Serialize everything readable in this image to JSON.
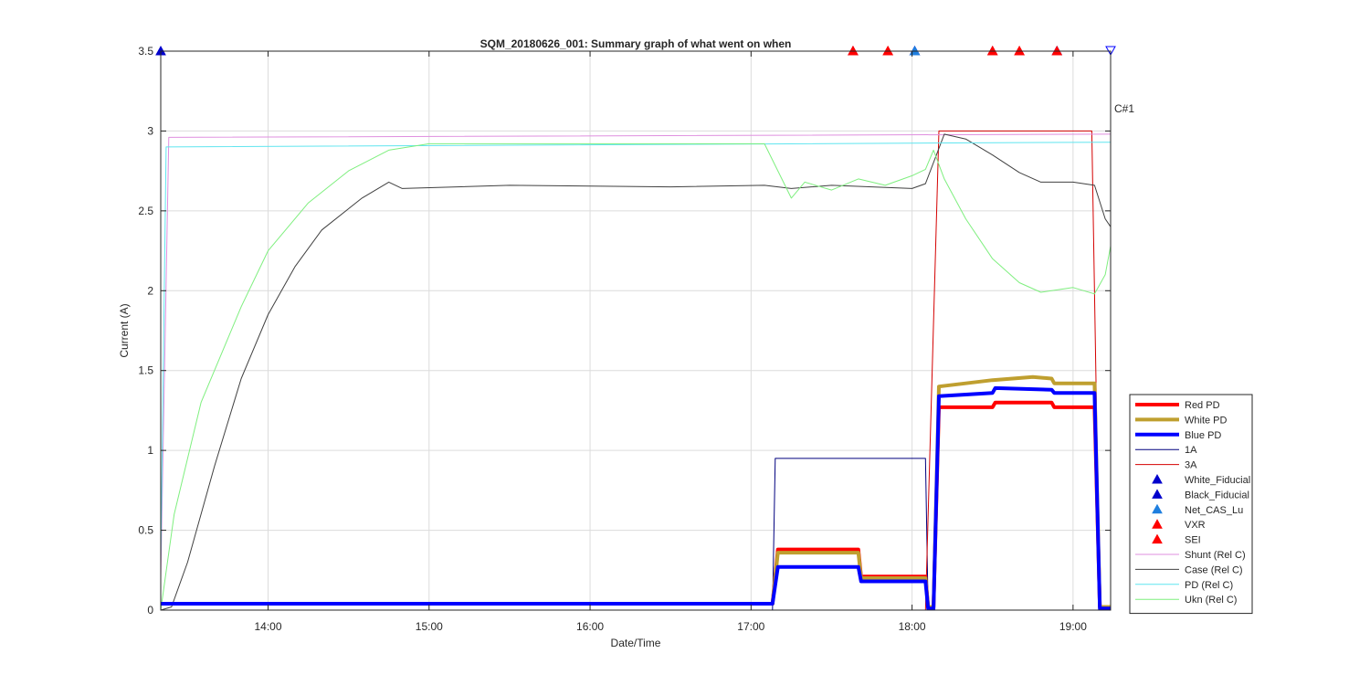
{
  "chart_data": {
    "type": "line",
    "title": "SQM_20180626_001: Summary graph of what went on when",
    "xlabel": "Date/Time",
    "ylabel": "Current (A)",
    "xlim": [
      "13:20",
      "19:14"
    ],
    "ylim": [
      0,
      3.5
    ],
    "x_ticks": [
      "14:00",
      "15:00",
      "16:00",
      "17:00",
      "18:00",
      "19:00"
    ],
    "y_ticks": [
      "0",
      "0.5",
      "1",
      "1.5",
      "2",
      "2.5",
      "3",
      "3.5"
    ],
    "grid": true,
    "legend_position": "right",
    "annotations": [
      {
        "text": "C#1",
        "x": "19:14",
        "y": 3.5
      }
    ],
    "series": [
      {
        "name": "Red PD",
        "color": "#ff0000",
        "width": 4,
        "points": [
          [
            "13:20",
            0.04
          ],
          [
            "17:08",
            0.04
          ],
          [
            "17:10",
            0.38
          ],
          [
            "17:40",
            0.38
          ],
          [
            "17:41",
            0.21
          ],
          [
            "18:05",
            0.21
          ],
          [
            "18:06",
            0.02
          ],
          [
            "18:08",
            0.02
          ],
          [
            "18:10",
            1.27
          ],
          [
            "18:30",
            1.27
          ],
          [
            "18:31",
            1.3
          ],
          [
            "18:52",
            1.3
          ],
          [
            "18:53",
            1.27
          ],
          [
            "19:08",
            1.27
          ],
          [
            "19:10",
            0.02
          ],
          [
            "19:14",
            0.02
          ]
        ]
      },
      {
        "name": "White PD",
        "color": "#bf9f2f",
        "width": 4,
        "points": [
          [
            "13:20",
            0.04
          ],
          [
            "17:08",
            0.04
          ],
          [
            "17:10",
            0.36
          ],
          [
            "17:40",
            0.36
          ],
          [
            "17:41",
            0.2
          ],
          [
            "18:05",
            0.2
          ],
          [
            "18:06",
            0.02
          ],
          [
            "18:08",
            0.02
          ],
          [
            "18:10",
            1.4
          ],
          [
            "18:20",
            1.42
          ],
          [
            "18:30",
            1.44
          ],
          [
            "18:45",
            1.46
          ],
          [
            "18:52",
            1.45
          ],
          [
            "18:53",
            1.42
          ],
          [
            "19:08",
            1.42
          ],
          [
            "19:10",
            0.02
          ],
          [
            "19:14",
            0.02
          ]
        ]
      },
      {
        "name": "Blue PD",
        "color": "#0000ff",
        "width": 4,
        "points": [
          [
            "13:20",
            0.04
          ],
          [
            "17:08",
            0.04
          ],
          [
            "17:10",
            0.27
          ],
          [
            "17:40",
            0.27
          ],
          [
            "17:41",
            0.18
          ],
          [
            "18:05",
            0.18
          ],
          [
            "18:06",
            0.01
          ],
          [
            "18:08",
            0.01
          ],
          [
            "18:10",
            1.34
          ],
          [
            "18:30",
            1.36
          ],
          [
            "18:31",
            1.39
          ],
          [
            "18:52",
            1.38
          ],
          [
            "18:53",
            1.36
          ],
          [
            "19:08",
            1.36
          ],
          [
            "19:10",
            0.01
          ],
          [
            "19:14",
            0.01
          ]
        ]
      },
      {
        "name": "1A",
        "color": "#00007f",
        "width": 1,
        "points": [
          [
            "13:20",
            0.0
          ],
          [
            "17:08",
            0.0
          ],
          [
            "17:09",
            0.95
          ],
          [
            "18:05",
            0.95
          ],
          [
            "18:06",
            0.0
          ],
          [
            "19:14",
            0.0
          ]
        ]
      },
      {
        "name": "3A",
        "color": "#d40000",
        "width": 1,
        "points": [
          [
            "13:20",
            0.0
          ],
          [
            "18:05",
            0.0
          ],
          [
            "18:10",
            3.0
          ],
          [
            "19:07",
            3.0
          ],
          [
            "19:10",
            0.0
          ],
          [
            "19:14",
            0.0
          ]
        ]
      },
      {
        "name": "Shunt (Rel C)",
        "color": "#df8fdf",
        "width": 1,
        "points": [
          [
            "13:20",
            0.2
          ],
          [
            "13:23",
            2.96
          ],
          [
            "19:12",
            2.98
          ],
          [
            "19:14",
            2.98
          ]
        ]
      },
      {
        "name": "Case (Rel C)",
        "color": "#404040",
        "width": 1,
        "points": [
          [
            "13:20",
            0.0
          ],
          [
            "13:24",
            0.02
          ],
          [
            "13:30",
            0.3
          ],
          [
            "13:40",
            0.9
          ],
          [
            "13:50",
            1.45
          ],
          [
            "14:00",
            1.85
          ],
          [
            "14:10",
            2.15
          ],
          [
            "14:20",
            2.38
          ],
          [
            "14:35",
            2.58
          ],
          [
            "14:45",
            2.68
          ],
          [
            "14:50",
            2.64
          ],
          [
            "15:30",
            2.66
          ],
          [
            "16:30",
            2.65
          ],
          [
            "17:05",
            2.66
          ],
          [
            "17:15",
            2.64
          ],
          [
            "17:30",
            2.66
          ],
          [
            "18:00",
            2.64
          ],
          [
            "18:05",
            2.67
          ],
          [
            "18:12",
            2.98
          ],
          [
            "18:20",
            2.95
          ],
          [
            "18:30",
            2.85
          ],
          [
            "18:40",
            2.74
          ],
          [
            "18:48",
            2.68
          ],
          [
            "19:00",
            2.68
          ],
          [
            "19:08",
            2.66
          ],
          [
            "19:12",
            2.45
          ],
          [
            "19:14",
            2.4
          ]
        ]
      },
      {
        "name": "PD (Rel C)",
        "color": "#5fe5ef",
        "width": 1,
        "points": [
          [
            "13:20",
            0.3
          ],
          [
            "13:22",
            2.9
          ],
          [
            "19:12",
            2.93
          ],
          [
            "19:14",
            2.93
          ]
        ]
      },
      {
        "name": "Ukn (Rel C)",
        "color": "#7fef7f",
        "width": 1,
        "points": [
          [
            "13:20",
            0.0
          ],
          [
            "13:25",
            0.6
          ],
          [
            "13:35",
            1.3
          ],
          [
            "13:50",
            1.9
          ],
          [
            "14:00",
            2.25
          ],
          [
            "14:15",
            2.55
          ],
          [
            "14:30",
            2.75
          ],
          [
            "14:45",
            2.88
          ],
          [
            "15:00",
            2.92
          ],
          [
            "16:30",
            2.92
          ],
          [
            "17:05",
            2.92
          ],
          [
            "17:10",
            2.75
          ],
          [
            "17:15",
            2.58
          ],
          [
            "17:20",
            2.68
          ],
          [
            "17:30",
            2.63
          ],
          [
            "17:40",
            2.7
          ],
          [
            "17:50",
            2.66
          ],
          [
            "18:00",
            2.72
          ],
          [
            "18:05",
            2.76
          ],
          [
            "18:08",
            2.88
          ],
          [
            "18:12",
            2.7
          ],
          [
            "18:20",
            2.45
          ],
          [
            "18:30",
            2.2
          ],
          [
            "18:40",
            2.05
          ],
          [
            "18:48",
            1.99
          ],
          [
            "19:00",
            2.02
          ],
          [
            "19:08",
            1.98
          ],
          [
            "19:12",
            2.1
          ],
          [
            "19:14",
            2.28
          ]
        ]
      }
    ],
    "markers": [
      {
        "name": "White_Fiducial",
        "color": "#0000cc",
        "times": [
          "17:38",
          "18:01",
          "18:30",
          "18:54"
        ]
      },
      {
        "name": "Black_Fiducial",
        "color": "#0000cc",
        "times": [
          "13:20",
          "18:01",
          "18:54"
        ]
      },
      {
        "name": "Net_CAS_Lu",
        "color": "#1f7fdf",
        "times": [
          "18:01"
        ]
      },
      {
        "name": "VXR",
        "color": "#ff0000",
        "times": [
          "17:38",
          "17:51",
          "18:30",
          "18:40"
        ]
      },
      {
        "name": "SEI",
        "color": "#ff0000",
        "times": [
          "17:38",
          "17:51",
          "18:30",
          "18:40",
          "18:54"
        ]
      },
      {
        "name": "C#1",
        "color": "#0000ff",
        "times": [
          "19:14"
        ],
        "shape": "triangle-down-open"
      }
    ]
  }
}
